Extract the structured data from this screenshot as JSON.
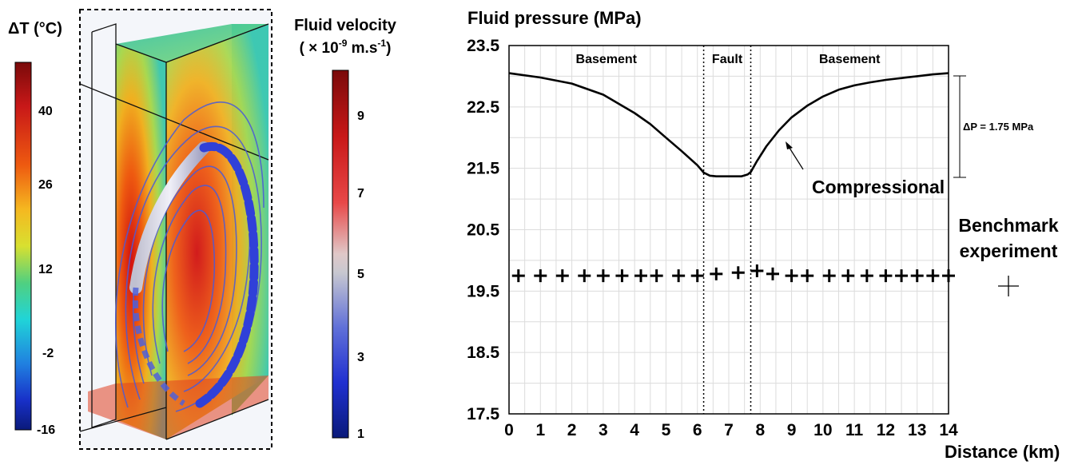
{
  "colorbar_temperature": {
    "label": "ΔT (°C)",
    "ticks": [
      "40",
      "26",
      "12",
      "-2",
      "-16"
    ]
  },
  "colorbar_velocity": {
    "label_line1": "Fluid velocity",
    "label_line2_prefix": "( × 10",
    "label_line2_sup1": "-9",
    "label_line2_mid": " m.s",
    "label_line2_sup2": "-1",
    "label_line2_suffix": ")",
    "ticks": [
      "9",
      "7",
      "5",
      "3",
      "1"
    ]
  },
  "chart_data": {
    "type": "line",
    "title": "Fluid pressure (MPa)",
    "xlabel": "Distance (km)",
    "ylabel": "Fluid pressure (MPa)",
    "xlim": [
      0,
      14
    ],
    "ylim": [
      17.5,
      23.5
    ],
    "x_ticks": [
      0,
      1,
      2,
      3,
      4,
      5,
      6,
      7,
      8,
      9,
      10,
      11,
      12,
      13,
      14
    ],
    "y_ticks": [
      23.5,
      22.5,
      21.5,
      20.5,
      19.5,
      18.5,
      17.5
    ],
    "y_tick_labels": [
      "23.5",
      "22.5",
      "21.5",
      "20.5",
      "19.5",
      "18.5",
      "17.5"
    ],
    "grid": true,
    "fault_boundaries": [
      6.2,
      7.7
    ],
    "zone_labels": [
      "Basement",
      "Fault",
      "Basement"
    ],
    "series": [
      {
        "name": "Compressional",
        "x": [
          0,
          1,
          2,
          3,
          4,
          4.5,
          5,
          5.5,
          6.0,
          6.2,
          6.4,
          6.6,
          6.8,
          7.0,
          7.2,
          7.4,
          7.6,
          7.7,
          7.9,
          8.2,
          8.6,
          9.0,
          9.5,
          10.0,
          10.5,
          11.0,
          11.5,
          12.0,
          12.5,
          13.0,
          13.5,
          14.0
        ],
        "y": [
          23.05,
          22.98,
          22.88,
          22.7,
          22.4,
          22.22,
          22.0,
          21.78,
          21.55,
          21.43,
          21.38,
          21.37,
          21.37,
          21.37,
          21.37,
          21.37,
          21.4,
          21.44,
          21.62,
          21.86,
          22.12,
          22.33,
          22.52,
          22.67,
          22.78,
          22.85,
          22.9,
          22.94,
          22.97,
          23.0,
          23.03,
          23.05
        ]
      },
      {
        "name": "Benchmark experiment",
        "x": [
          0.3,
          1.0,
          1.7,
          2.4,
          3.0,
          3.6,
          4.2,
          4.7,
          5.4,
          6.0,
          6.6,
          7.3,
          7.9,
          8.4,
          9.0,
          9.5,
          10.2,
          10.8,
          11.4,
          12.0,
          12.5,
          13.0,
          13.5,
          14.0
        ],
        "y": [
          19.75,
          19.75,
          19.75,
          19.75,
          19.75,
          19.75,
          19.75,
          19.75,
          19.75,
          19.75,
          19.78,
          19.8,
          19.83,
          19.78,
          19.75,
          19.75,
          19.75,
          19.75,
          19.75,
          19.75,
          19.75,
          19.75,
          19.75,
          19.75
        ]
      }
    ],
    "annotations": {
      "delta_p": "ΔP = 1.75 MPa",
      "curve_label": "Compressional",
      "legend_line1": "Benchmark",
      "legend_line2": "experiment"
    }
  }
}
